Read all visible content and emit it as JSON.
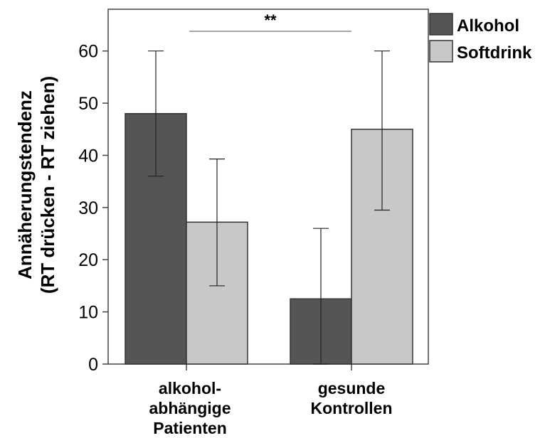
{
  "chart_data": {
    "type": "bar",
    "ylabel_lines": [
      "Annäherungstendenz",
      "(RT drücken - RT ziehen)"
    ],
    "categories": [
      [
        "alkohol-",
        "abhängige",
        "Patienten"
      ],
      [
        "gesunde",
        "Kontrollen"
      ]
    ],
    "series": [
      {
        "name": "Alkohol",
        "color": "#555555",
        "values": [
          48,
          12.5
        ],
        "err_low": [
          36,
          0
        ],
        "err_high": [
          60,
          26
        ]
      },
      {
        "name": "Softdrink",
        "color": "#c8c8c8",
        "values": [
          27.2,
          45
        ],
        "err_low": [
          15,
          29.5
        ],
        "err_high": [
          39.3,
          60
        ]
      }
    ],
    "ylim": [
      0,
      68
    ],
    "yticks": [
      0,
      10,
      20,
      30,
      40,
      50,
      60
    ],
    "significance": {
      "label": "**",
      "between_categories": [
        0,
        1
      ]
    },
    "grid": false,
    "legend_position": "top-right outside"
  }
}
